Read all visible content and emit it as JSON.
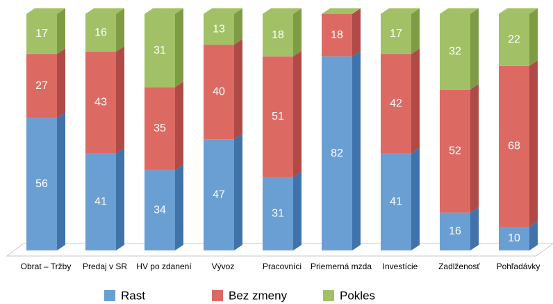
{
  "chart_data": {
    "type": "stacked-bar-3d",
    "categories": [
      "Obrat – Tržby",
      "Predaj v SR",
      "HV po zdanení",
      "Vývoz",
      "Pracovníci",
      "Priemerná mzda",
      "Investície",
      "Zadlženosť",
      "Pohľadávky"
    ],
    "series": [
      {
        "name": "Rast",
        "color": "#6a9fd3",
        "side": "#3f73a9",
        "values": [
          56,
          41,
          34,
          47,
          31,
          82,
          41,
          16,
          10
        ]
      },
      {
        "name": "Bez zmeny",
        "color": "#dc6a63",
        "side": "#b04a46",
        "values": [
          27,
          43,
          35,
          40,
          51,
          18,
          42,
          52,
          68
        ]
      },
      {
        "name": "Pokles",
        "color": "#a2c166",
        "side": "#7e9c44",
        "values": [
          17,
          16,
          31,
          13,
          18,
          null,
          17,
          32,
          22
        ]
      }
    ],
    "legend": "bottom"
  }
}
